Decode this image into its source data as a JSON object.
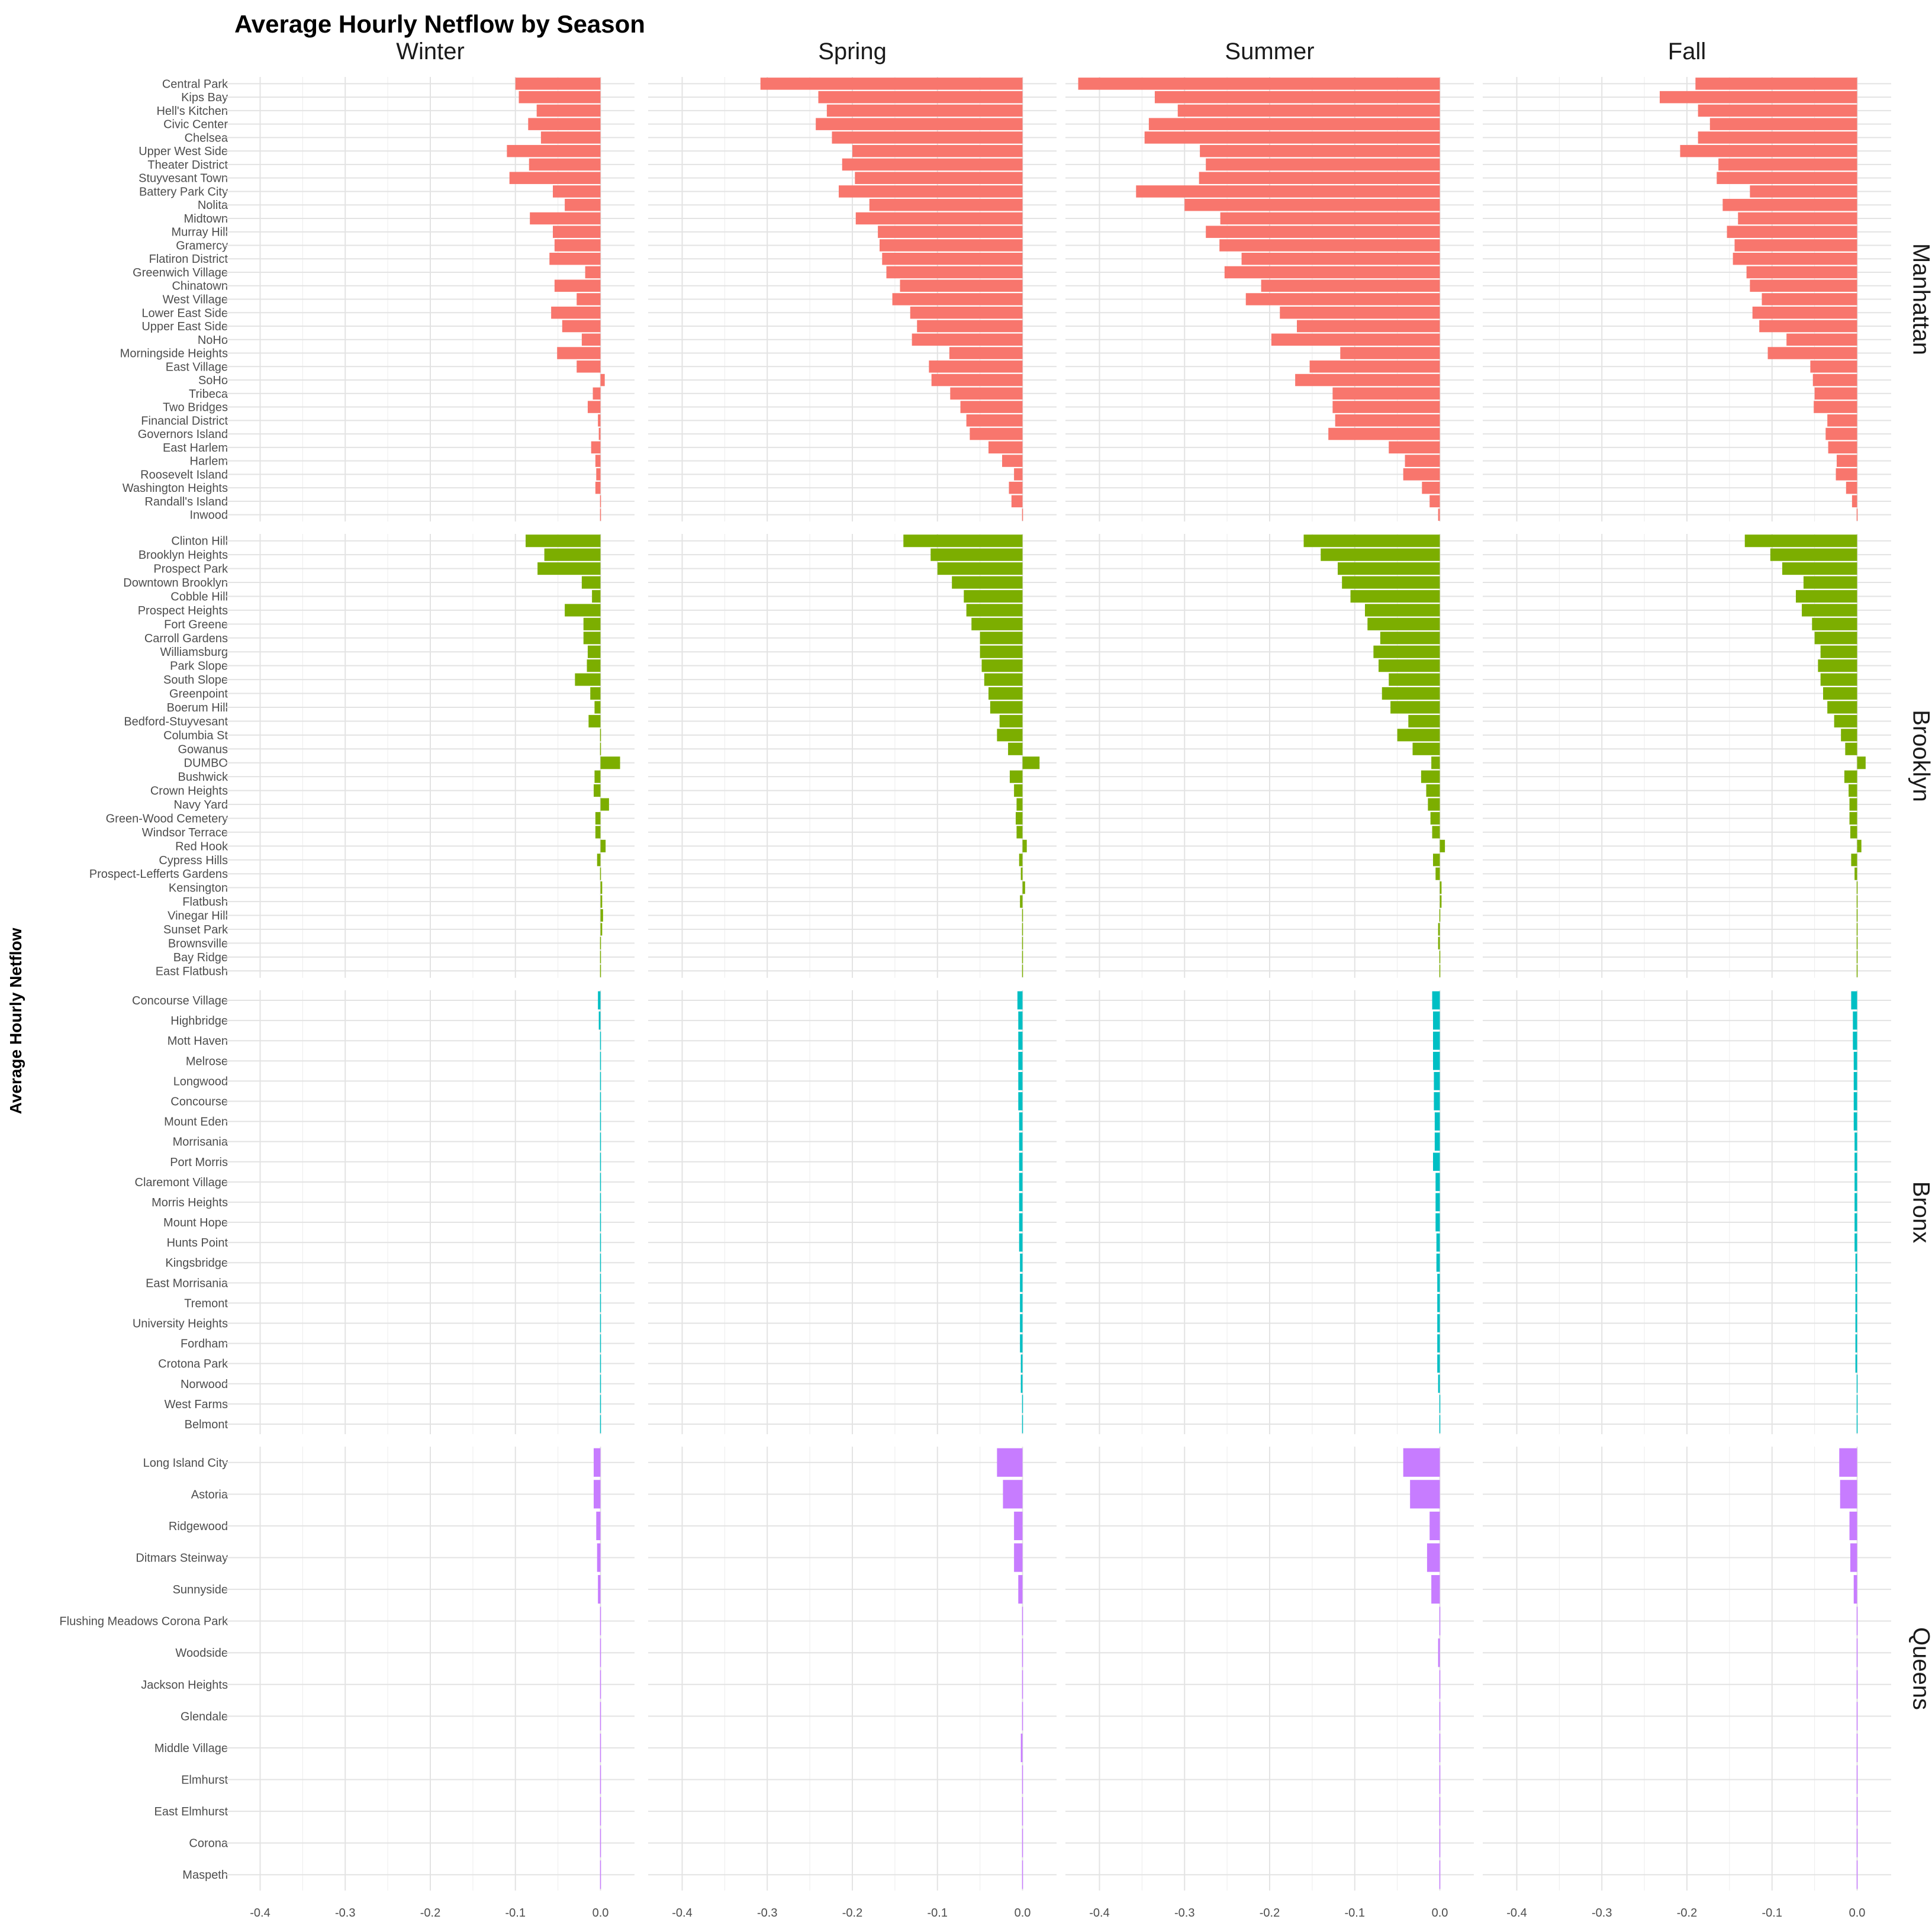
{
  "chart_data": {
    "type": "bar",
    "title": "Average Hourly Netflow by Season",
    "ylabel": "Average Hourly Netflow",
    "xlim": [
      -0.44,
      0.04
    ],
    "x_ticks": [
      -0.4,
      -0.3,
      -0.2,
      -0.1,
      0.0
    ],
    "x_tick_labels": [
      "-0.4",
      "-0.3",
      "-0.2",
      "-0.1",
      "0.0"
    ],
    "seasons": [
      "Winter",
      "Spring",
      "Summer",
      "Fall"
    ],
    "groups": [
      {
        "name": "Manhattan",
        "color": "#F8766D",
        "categories": [
          "Central Park",
          "Kips Bay",
          "Hell's Kitchen",
          "Civic Center",
          "Chelsea",
          "Upper West Side",
          "Theater District",
          "Stuyvesant Town",
          "Battery Park City",
          "Nolita",
          "Midtown",
          "Murray Hill",
          "Gramercy",
          "Flatiron District",
          "Greenwich Village",
          "Chinatown",
          "West Village",
          "Lower East Side",
          "Upper East Side",
          "NoHo",
          "Morningside Heights",
          "East Village",
          "SoHo",
          "Tribeca",
          "Two Bridges",
          "Financial District",
          "Governors Island",
          "East Harlem",
          "Harlem",
          "Roosevelt Island",
          "Washington Heights",
          "Randall's Island",
          "Inwood"
        ],
        "values": {
          "Winter": [
            -0.1,
            -0.096,
            -0.075,
            -0.085,
            -0.07,
            -0.11,
            -0.084,
            -0.107,
            -0.056,
            -0.042,
            -0.083,
            -0.056,
            -0.054,
            -0.06,
            -0.018,
            -0.054,
            -0.028,
            -0.058,
            -0.045,
            -0.022,
            -0.051,
            -0.028,
            0.005,
            -0.009,
            -0.015,
            -0.003,
            -0.002,
            -0.011,
            -0.006,
            -0.005,
            -0.006,
            -0.001,
            -0.001
          ],
          "Spring": [
            -0.308,
            -0.24,
            -0.23,
            -0.243,
            -0.224,
            -0.2,
            -0.212,
            -0.197,
            -0.216,
            -0.18,
            -0.196,
            -0.17,
            -0.168,
            -0.165,
            -0.16,
            -0.144,
            -0.153,
            -0.132,
            -0.124,
            -0.13,
            -0.086,
            -0.11,
            -0.107,
            -0.085,
            -0.073,
            -0.066,
            -0.062,
            -0.04,
            -0.024,
            -0.01,
            -0.016,
            -0.013,
            -0.001
          ],
          "Summer": [
            -0.425,
            -0.335,
            -0.308,
            -0.342,
            -0.347,
            -0.282,
            -0.275,
            -0.283,
            -0.357,
            -0.3,
            -0.258,
            -0.275,
            -0.259,
            -0.233,
            -0.253,
            -0.21,
            -0.228,
            -0.188,
            -0.168,
            -0.198,
            -0.117,
            -0.153,
            -0.17,
            -0.126,
            -0.126,
            -0.123,
            -0.131,
            -0.06,
            -0.041,
            -0.043,
            -0.021,
            -0.012,
            -0.002
          ],
          "Fall": [
            -0.19,
            -0.232,
            -0.187,
            -0.173,
            -0.187,
            -0.208,
            -0.163,
            -0.165,
            -0.126,
            -0.158,
            -0.14,
            -0.153,
            -0.144,
            -0.146,
            -0.13,
            -0.126,
            -0.112,
            -0.123,
            -0.115,
            -0.083,
            -0.105,
            -0.055,
            -0.052,
            -0.05,
            -0.051,
            -0.035,
            -0.037,
            -0.034,
            -0.024,
            -0.025,
            -0.013,
            -0.006,
            0.001
          ]
        }
      },
      {
        "name": "Brooklyn",
        "color": "#7CAE00",
        "categories": [
          "Clinton Hill",
          "Brooklyn Heights",
          "Prospect Park",
          "Downtown Brooklyn",
          "Cobble Hill",
          "Prospect Heights",
          "Fort Greene",
          "Carroll Gardens",
          "Williamsburg",
          "Park Slope",
          "South Slope",
          "Greenpoint",
          "Boerum Hill",
          "Bedford-Stuyvesant",
          "Columbia St",
          "Gowanus",
          "DUMBO",
          "Bushwick",
          "Crown Heights",
          "Navy Yard",
          "Green-Wood Cemetery",
          "Windsor Terrace",
          "Red Hook",
          "Cypress Hills",
          "Prospect-Lefferts Gardens",
          "Kensington",
          "Flatbush",
          "Vinegar Hill",
          "Sunset Park",
          "Brownsville",
          "Bay Ridge",
          "East Flatbush"
        ],
        "values": {
          "Winter": [
            -0.088,
            -0.066,
            -0.074,
            -0.022,
            -0.01,
            -0.042,
            -0.02,
            -0.02,
            -0.015,
            -0.016,
            -0.03,
            -0.012,
            -0.007,
            -0.014,
            0,
            0,
            0.023,
            -0.007,
            -0.008,
            0.01,
            -0.006,
            -0.006,
            0.006,
            -0.004,
            0.001,
            0.002,
            0.002,
            0.003,
            0.002,
            -0.001,
            0.001,
            0
          ],
          "Spring": [
            -0.14,
            -0.108,
            -0.1,
            -0.083,
            -0.069,
            -0.066,
            -0.06,
            -0.05,
            -0.05,
            -0.048,
            -0.045,
            -0.04,
            -0.038,
            -0.027,
            -0.03,
            -0.017,
            0.02,
            -0.015,
            -0.01,
            -0.007,
            -0.008,
            -0.007,
            0.005,
            -0.004,
            -0.002,
            0.003,
            -0.003,
            0.001,
            0.001,
            0.001,
            0.001,
            0
          ],
          "Summer": [
            -0.16,
            -0.14,
            -0.12,
            -0.115,
            -0.105,
            -0.088,
            -0.085,
            -0.07,
            -0.078,
            -0.072,
            -0.06,
            -0.068,
            -0.058,
            -0.037,
            -0.05,
            -0.032,
            -0.01,
            -0.022,
            -0.016,
            -0.014,
            -0.011,
            -0.009,
            0.006,
            -0.008,
            -0.005,
            0.002,
            0.002,
            -0.001,
            -0.002,
            -0.002,
            0.001,
            0.001
          ],
          "Fall": [
            -0.132,
            -0.102,
            -0.088,
            -0.063,
            -0.072,
            -0.065,
            -0.053,
            -0.05,
            -0.043,
            -0.046,
            -0.043,
            -0.04,
            -0.035,
            -0.027,
            -0.019,
            -0.014,
            0.01,
            -0.015,
            -0.01,
            -0.009,
            -0.009,
            -0.008,
            0.005,
            -0.007,
            -0.003,
            0.001,
            0,
            0,
            0,
            -0.001,
            -0.001,
            0
          ]
        }
      },
      {
        "name": "Bronx",
        "color": "#00BFC4",
        "categories": [
          "Concourse Village",
          "Highbridge",
          "Mott Haven",
          "Melrose",
          "Longwood",
          "Concourse",
          "Mount Eden",
          "Morrisania",
          "Port Morris",
          "Claremont Village",
          "Morris Heights",
          "Mount Hope",
          "Hunts Point",
          "Kingsbridge",
          "East Morrisania",
          "Tremont",
          "University Heights",
          "Fordham",
          "Crotona Park",
          "Norwood",
          "West Farms",
          "Belmont"
        ],
        "values": {
          "Winter": [
            -0.003,
            -0.002,
            -0.001,
            -0.001,
            -0.001,
            -0.001,
            -0.001,
            -0.001,
            -0.001,
            -0.001,
            -0.001,
            -0.001,
            -0.001,
            -0.001,
            0,
            -0.001,
            -0.001,
            -0.001,
            -0.001,
            0,
            0,
            0
          ],
          "Spring": [
            -0.006,
            -0.005,
            -0.005,
            -0.005,
            -0.005,
            -0.005,
            -0.004,
            -0.004,
            -0.004,
            -0.004,
            -0.004,
            -0.004,
            -0.004,
            -0.003,
            -0.003,
            -0.003,
            -0.003,
            -0.003,
            -0.002,
            -0.002,
            0,
            0
          ],
          "Summer": [
            -0.009,
            -0.008,
            -0.008,
            -0.008,
            -0.007,
            -0.007,
            -0.006,
            -0.006,
            -0.008,
            -0.005,
            -0.005,
            -0.005,
            -0.004,
            -0.004,
            -0.003,
            -0.003,
            -0.003,
            -0.003,
            -0.003,
            -0.002,
            0,
            0
          ],
          "Fall": [
            -0.007,
            -0.005,
            -0.005,
            -0.004,
            -0.004,
            -0.004,
            -0.004,
            -0.003,
            -0.003,
            -0.003,
            -0.003,
            -0.003,
            -0.003,
            -0.002,
            -0.002,
            -0.002,
            -0.002,
            -0.002,
            -0.002,
            0,
            0,
            0
          ]
        }
      },
      {
        "name": "Queens",
        "color": "#C77CFF",
        "categories": [
          "Long Island City",
          "Astoria",
          "Ridgewood",
          "Ditmars Steinway",
          "Sunnyside",
          "Flushing Meadows Corona Park",
          "Woodside",
          "Jackson Heights",
          "Glendale",
          "Middle Village",
          "Elmhurst",
          "East Elmhurst",
          "Corona",
          "Maspeth"
        ],
        "values": {
          "Winter": [
            -0.008,
            -0.008,
            -0.005,
            -0.004,
            -0.003,
            0,
            -0.001,
            0,
            0.001,
            0.001,
            0,
            0,
            0,
            0
          ],
          "Spring": [
            -0.03,
            -0.023,
            -0.01,
            -0.01,
            -0.005,
            0,
            -0.001,
            0,
            0,
            -0.002,
            0,
            0,
            0,
            0
          ],
          "Summer": [
            -0.043,
            -0.035,
            -0.012,
            -0.015,
            -0.01,
            0,
            -0.002,
            0,
            -0.001,
            -0.001,
            -0.001,
            -0.001,
            0,
            0
          ],
          "Fall": [
            -0.021,
            -0.02,
            -0.009,
            -0.008,
            -0.004,
            0.001,
            0.001,
            -0.001,
            -0.001,
            0,
            -0.001,
            0,
            0,
            0
          ]
        }
      }
    ]
  }
}
